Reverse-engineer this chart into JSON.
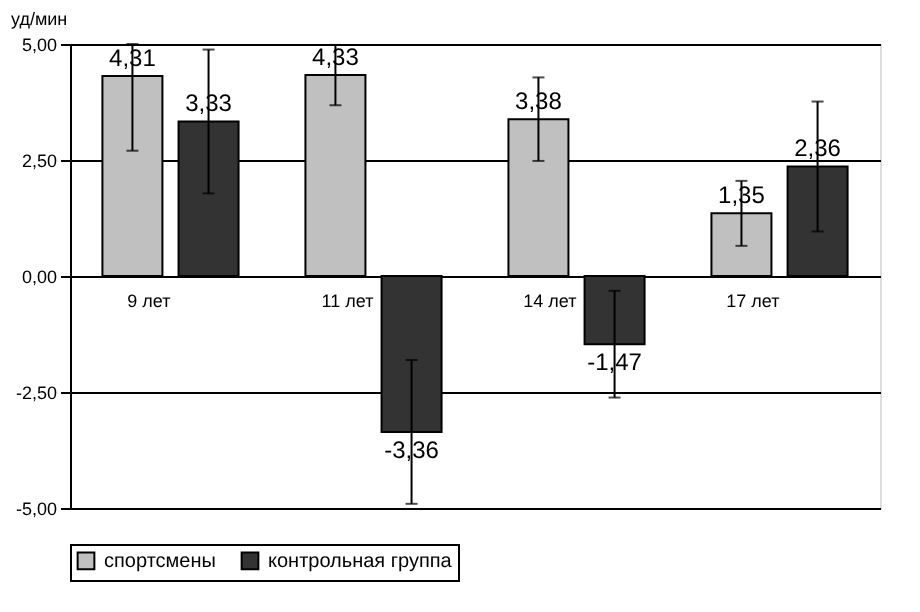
{
  "chart_data": {
    "type": "bar",
    "ylabel": "уд/мин",
    "categories": [
      "9 лет",
      "11 лет",
      "14 лет",
      "17 лет"
    ],
    "series": [
      {
        "name": "спортсмены",
        "color": "#c0c0c0",
        "values": [
          4.31,
          4.33,
          3.38,
          1.35
        ],
        "value_labels": [
          "4,31",
          "4,33",
          "3,38",
          "1,35"
        ],
        "errors": [
          [
            2.7,
            5.0
          ],
          0.65,
          0.9,
          0.7
        ]
      },
      {
        "name": "контрольная группа",
        "color": "#333333",
        "values": [
          3.33,
          -3.36,
          -1.47,
          2.36
        ],
        "value_labels": [
          "3,33",
          "-3,36",
          "-1,47",
          "2,36"
        ],
        "errors": [
          1.55,
          1.55,
          1.15,
          1.4
        ]
      }
    ],
    "ylim": [
      -5,
      5
    ],
    "yticks": [
      {
        "value": -5,
        "label": "-5,00"
      },
      {
        "value": -2.5,
        "label": "-2,50"
      },
      {
        "value": 0,
        "label": "0,00"
      },
      {
        "value": 2.5,
        "label": "2,50"
      },
      {
        "value": 5,
        "label": "5,00"
      }
    ],
    "grid": "y",
    "legend": "bottom"
  }
}
